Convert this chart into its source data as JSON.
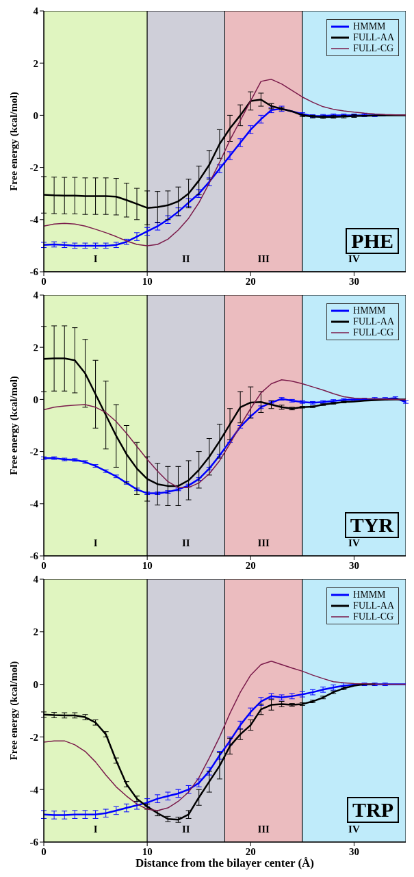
{
  "chart_data": [
    {
      "type": "line",
      "ylabel": "Free energy (kcal/mol)",
      "x": [
        0,
        1,
        2,
        3,
        4,
        5,
        6,
        7,
        8,
        9,
        10,
        11,
        12,
        13,
        14,
        15,
        16,
        17,
        18,
        19,
        20,
        21,
        22,
        23,
        24,
        25,
        26,
        27,
        28,
        29,
        30,
        31,
        32,
        33,
        34,
        35
      ],
      "xlim": [
        0,
        35
      ],
      "xticks": [
        0,
        10,
        20,
        30
      ],
      "ylim": [
        -6,
        4
      ],
      "yticks": [
        -6,
        -4,
        -2,
        0,
        2,
        4
      ],
      "legend": "top right",
      "annotations": [
        "PHE"
      ],
      "bands": [
        {
          "axis": "x",
          "from": 0,
          "to": 10,
          "label": "I",
          "color": "#e0f5c0"
        },
        {
          "axis": "x",
          "from": 10,
          "to": 17.5,
          "label": "II",
          "color": "#cfcfd9"
        },
        {
          "axis": "x",
          "from": 17.5,
          "to": 25,
          "label": "III",
          "color": "#ebbcbf"
        },
        {
          "axis": "x",
          "from": 25,
          "to": 35,
          "label": "IV",
          "color": "#bfebfa"
        }
      ],
      "series": [
        {
          "name": "HMMM",
          "color": "#0000ff",
          "values": [
            -4.97,
            -4.95,
            -4.97,
            -5.0,
            -5.0,
            -5.0,
            -5.0,
            -4.97,
            -4.85,
            -4.65,
            -4.45,
            -4.25,
            -4.0,
            -3.7,
            -3.35,
            -3.0,
            -2.55,
            -2.05,
            -1.55,
            -1.05,
            -0.55,
            -0.15,
            0.2,
            0.25,
            0.15,
            0.05,
            -0.03,
            -0.02,
            0,
            0,
            0,
            0,
            0,
            0,
            null,
            null
          ],
          "errors": [
            0.1,
            0.1,
            0.1,
            0.1,
            0.1,
            0.1,
            0.1,
            0.1,
            0.1,
            0.15,
            0.15,
            0.15,
            0.15,
            0.15,
            0.15,
            0.15,
            0.15,
            0.15,
            0.15,
            0.15,
            0.15,
            0.15,
            0.1,
            0.1,
            null,
            0.05,
            0.05,
            0.05,
            0.05,
            0.05,
            0.05,
            0.05,
            0.05,
            null,
            null,
            null
          ]
        },
        {
          "name": "FULL-AA",
          "color": "#000000",
          "values": [
            -3.05,
            -3.07,
            -3.08,
            -3.08,
            -3.1,
            -3.1,
            -3.1,
            -3.12,
            -3.25,
            -3.4,
            -3.55,
            -3.52,
            -3.45,
            -3.3,
            -3.0,
            -2.5,
            -1.9,
            -1.1,
            -0.5,
            0.0,
            0.55,
            0.6,
            0.35,
            0.25,
            0.15,
            0.0,
            -0.05,
            -0.07,
            -0.06,
            -0.05,
            -0.03,
            -0.02,
            -0.01,
            0,
            0,
            0
          ],
          "errors": [
            0.7,
            0.7,
            0.7,
            0.7,
            0.7,
            0.7,
            0.7,
            0.7,
            0.65,
            0.6,
            0.65,
            0.6,
            0.55,
            0.55,
            0.55,
            0.55,
            0.55,
            0.55,
            0.5,
            0.4,
            0.35,
            0.25,
            0.1,
            0.05,
            null,
            0.05,
            0.05,
            0.05,
            0.05,
            0.05,
            0.05,
            null,
            null,
            null,
            null,
            null
          ]
        },
        {
          "name": "FULL-CG",
          "color": "#7a1a4a",
          "values": [
            -4.25,
            -4.17,
            -4.14,
            -4.17,
            -4.25,
            -4.37,
            -4.5,
            -4.65,
            -4.82,
            -4.95,
            -5.0,
            -4.95,
            -4.75,
            -4.4,
            -3.95,
            -3.35,
            -2.6,
            -1.8,
            -0.95,
            -0.2,
            0.55,
            1.3,
            1.38,
            1.2,
            0.95,
            0.7,
            0.5,
            0.33,
            0.23,
            0.17,
            0.12,
            0.08,
            0.05,
            0.03,
            0.02,
            0.01
          ]
        }
      ]
    },
    {
      "type": "line",
      "ylabel": "Free energy (kcal/mol)",
      "x": [
        0,
        1,
        2,
        3,
        4,
        5,
        6,
        7,
        8,
        9,
        10,
        11,
        12,
        13,
        14,
        15,
        16,
        17,
        18,
        19,
        20,
        21,
        22,
        23,
        24,
        25,
        26,
        27,
        28,
        29,
        30,
        31,
        32,
        33,
        34,
        35
      ],
      "xlim": [
        0,
        35
      ],
      "xticks": [
        0,
        10,
        20,
        30
      ],
      "ylim": [
        -6,
        4
      ],
      "yticks": [
        -6,
        -4,
        -2,
        0,
        2,
        4
      ],
      "legend": "top right",
      "annotations": [
        "TYR"
      ],
      "bands": [
        {
          "axis": "x",
          "from": 0,
          "to": 10,
          "label": "I",
          "color": "#e0f5c0"
        },
        {
          "axis": "x",
          "from": 10,
          "to": 17.5,
          "label": "II",
          "color": "#cfcfd9"
        },
        {
          "axis": "x",
          "from": 17.5,
          "to": 25,
          "label": "III",
          "color": "#ebbcbf"
        },
        {
          "axis": "x",
          "from": 25,
          "to": 35,
          "label": "IV",
          "color": "#bfebfa"
        }
      ],
      "series": [
        {
          "name": "HMMM",
          "color": "#0000ff",
          "values": [
            -2.25,
            -2.25,
            -2.3,
            -2.32,
            -2.4,
            -2.55,
            -2.75,
            -2.95,
            -3.2,
            -3.45,
            -3.6,
            -3.6,
            -3.55,
            -3.45,
            -3.3,
            -3.05,
            -2.65,
            -2.15,
            -1.6,
            -1.05,
            -0.65,
            -0.3,
            -0.12,
            0.02,
            -0.05,
            -0.1,
            -0.13,
            -0.1,
            -0.06,
            -0.02,
            0,
            0,
            0.02,
            0.02,
            0.05,
            -0.1
          ],
          "errors": [
            0.05,
            0.05,
            0.05,
            0.05,
            0.05,
            0.05,
            0.05,
            0.05,
            0.05,
            0.05,
            0.05,
            0.05,
            0.05,
            0.05,
            0.05,
            0.05,
            0.05,
            0.05,
            0.05,
            0.05,
            0.05,
            0.05,
            0.05,
            0.05,
            0.05,
            0.05,
            0.05,
            0.05,
            0.05,
            0.05,
            0.05,
            0.05,
            0.05,
            0.05,
            0.05,
            0.05
          ]
        },
        {
          "name": "FULL-AA",
          "color": "#000000",
          "values": [
            1.55,
            1.57,
            1.57,
            1.5,
            1.0,
            0.2,
            -0.6,
            -1.4,
            -2.1,
            -2.65,
            -3.05,
            -3.25,
            -3.32,
            -3.32,
            -3.1,
            -2.7,
            -2.2,
            -1.6,
            -0.95,
            -0.3,
            -0.12,
            -0.1,
            -0.2,
            -0.3,
            -0.35,
            -0.3,
            -0.28,
            -0.2,
            -0.15,
            -0.1,
            -0.08,
            -0.05,
            -0.03,
            -0.01,
            0,
            0
          ],
          "errors": [
            1.25,
            1.25,
            1.25,
            1.25,
            1.3,
            1.3,
            1.3,
            1.2,
            1.1,
            1.0,
            0.85,
            0.8,
            0.75,
            0.75,
            0.75,
            0.7,
            0.7,
            0.65,
            0.6,
            0.6,
            0.6,
            0.4,
            0.15,
            0.08,
            0.05,
            0.03,
            0.03,
            0.03,
            0.03,
            0.03,
            null,
            null,
            null,
            null,
            null,
            null
          ]
        },
        {
          "name": "FULL-CG",
          "color": "#7a1a4a",
          "values": [
            -0.4,
            -0.3,
            -0.25,
            -0.22,
            -0.2,
            -0.3,
            -0.5,
            -0.85,
            -1.3,
            -1.8,
            -2.3,
            -2.75,
            -3.15,
            -3.38,
            -3.38,
            -3.2,
            -2.85,
            -2.35,
            -1.7,
            -1.0,
            -0.35,
            0.25,
            0.6,
            0.75,
            0.7,
            0.6,
            0.48,
            0.36,
            0.22,
            0.1,
            0.05,
            0.03,
            0.02,
            0.01,
            0,
            0
          ]
        }
      ]
    },
    {
      "type": "line",
      "xlabel": "Distance from the bilayer center (Å)",
      "ylabel": "Free energy (kcal/mol)",
      "x": [
        0,
        1,
        2,
        3,
        4,
        5,
        6,
        7,
        8,
        9,
        10,
        11,
        12,
        13,
        14,
        15,
        16,
        17,
        18,
        19,
        20,
        21,
        22,
        23,
        24,
        25,
        26,
        27,
        28,
        29,
        30,
        31,
        32,
        33,
        34,
        35
      ],
      "xlim": [
        0,
        35
      ],
      "xticks": [
        0,
        10,
        20,
        30
      ],
      "ylim": [
        -6,
        4
      ],
      "yticks": [
        -6,
        -4,
        -2,
        0,
        2,
        4
      ],
      "legend": "top right",
      "annotations": [
        "TRP"
      ],
      "bands": [
        {
          "axis": "x",
          "from": 0,
          "to": 10,
          "label": "I",
          "color": "#e0f5c0"
        },
        {
          "axis": "x",
          "from": 10,
          "to": 17.5,
          "label": "II",
          "color": "#cfcfd9"
        },
        {
          "axis": "x",
          "from": 17.5,
          "to": 25,
          "label": "III",
          "color": "#ebbcbf"
        },
        {
          "axis": "x",
          "from": 25,
          "to": 35,
          "label": "IV",
          "color": "#bfebfa"
        }
      ],
      "series": [
        {
          "name": "HMMM",
          "color": "#0000ff",
          "values": [
            -4.95,
            -4.97,
            -4.97,
            -4.95,
            -4.95,
            -4.95,
            -4.9,
            -4.8,
            -4.7,
            -4.6,
            -4.5,
            -4.35,
            -4.25,
            -4.15,
            -4.0,
            -3.75,
            -3.3,
            -2.7,
            -2.15,
            -1.55,
            -1.05,
            -0.65,
            -0.45,
            -0.5,
            -0.45,
            -0.38,
            -0.3,
            -0.2,
            -0.12,
            -0.05,
            -0.02,
            0,
            0,
            0,
            0,
            0
          ],
          "errors": [
            0.15,
            0.15,
            0.15,
            0.15,
            0.15,
            0.15,
            0.15,
            0.15,
            0.15,
            0.15,
            0.15,
            0.15,
            0.15,
            0.15,
            0.15,
            0.15,
            0.15,
            0.15,
            0.15,
            0.15,
            0.15,
            0.15,
            0.1,
            0.1,
            0.1,
            0.1,
            0.1,
            0.1,
            0.1,
            0.1,
            null,
            0.05,
            0.05,
            0.05,
            null,
            null
          ]
        },
        {
          "name": "FULL-AA",
          "color": "#000000",
          "values": [
            -1.15,
            -1.17,
            -1.18,
            -1.18,
            -1.25,
            -1.45,
            -1.9,
            -2.9,
            -3.8,
            -4.35,
            -4.65,
            -4.9,
            -5.12,
            -5.15,
            -4.95,
            -4.3,
            -3.7,
            -3.1,
            -2.35,
            -1.9,
            -1.55,
            -0.95,
            -0.78,
            -0.75,
            -0.78,
            -0.75,
            -0.65,
            -0.5,
            -0.3,
            -0.15,
            -0.05,
            0,
            0,
            null,
            null,
            null
          ],
          "errors": [
            0.1,
            0.1,
            0.1,
            0.1,
            0.1,
            0.1,
            0.1,
            0.1,
            0.1,
            0.1,
            0.1,
            0.1,
            0.1,
            0.1,
            0.15,
            0.3,
            0.4,
            0.5,
            0.3,
            0.2,
            0.2,
            0.2,
            0.2,
            0.1,
            0.05,
            0.05,
            0.05,
            0.05,
            0.05,
            0.05,
            null,
            null,
            null,
            null,
            null,
            null
          ]
        },
        {
          "name": "FULL-CG",
          "color": "#7a1a4a",
          "values": [
            -2.2,
            -2.15,
            -2.15,
            -2.3,
            -2.55,
            -2.95,
            -3.45,
            -3.9,
            -4.25,
            -4.55,
            -4.75,
            -4.8,
            -4.7,
            -4.45,
            -4.1,
            -3.55,
            -2.8,
            -2.0,
            -1.1,
            -0.3,
            0.35,
            0.75,
            0.88,
            0.75,
            0.62,
            0.5,
            0.35,
            0.22,
            0.1,
            0.06,
            0.03,
            0.02,
            0.01,
            0,
            0,
            0
          ]
        }
      ]
    }
  ]
}
